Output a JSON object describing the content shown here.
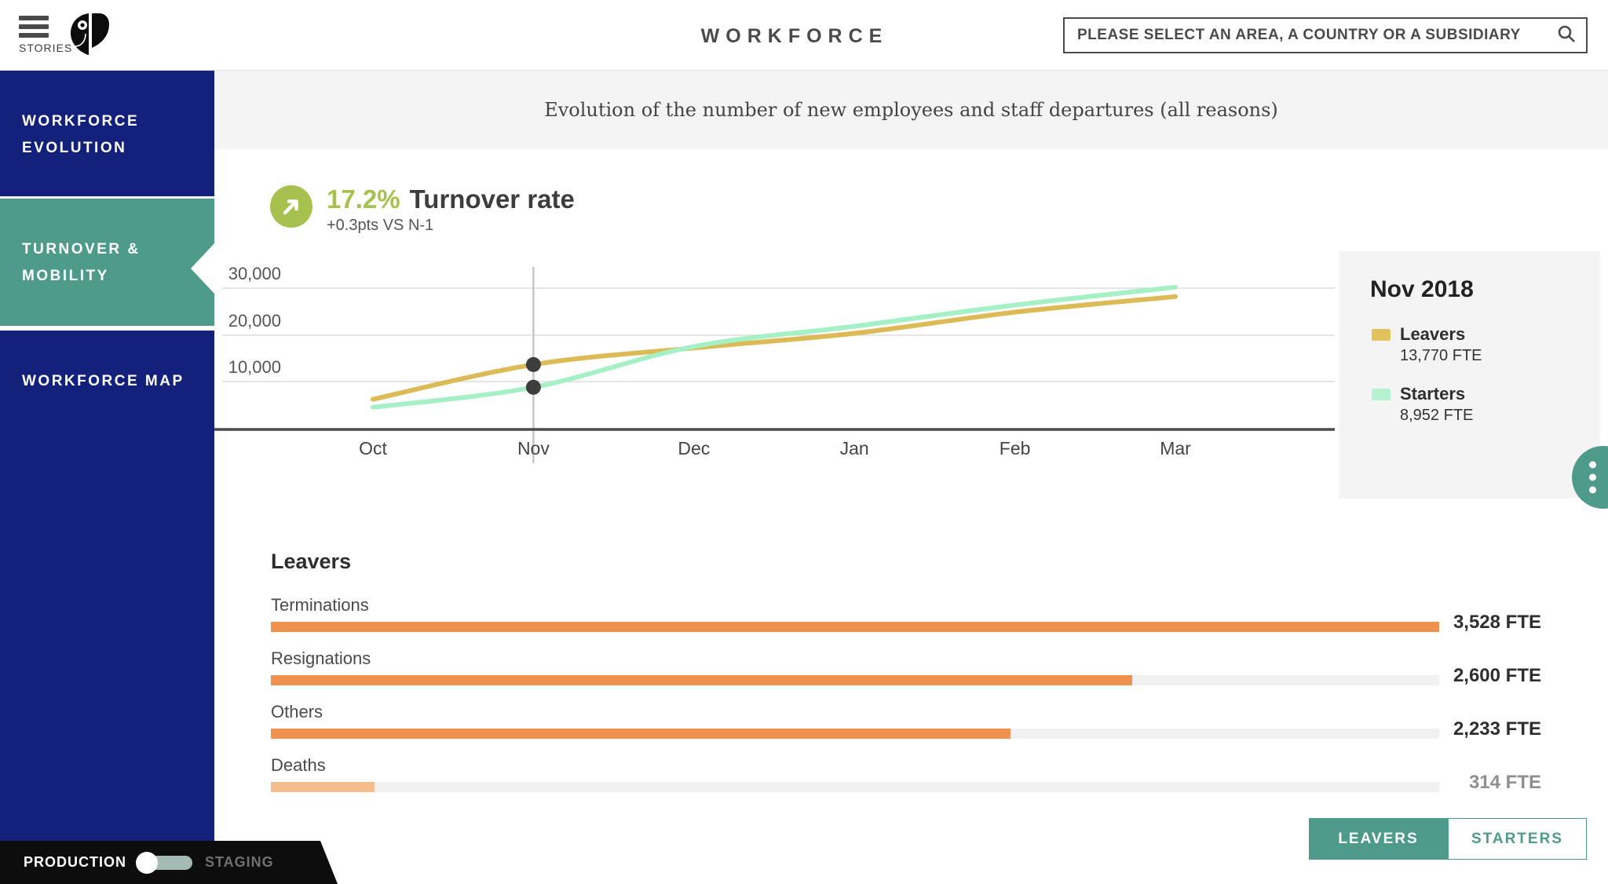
{
  "header": {
    "menu_label": "STORIES",
    "title": "WORKFORCE",
    "search_placeholder": "PLEASE SELECT AN AREA, A COUNTRY OR A SUBSIDIARY"
  },
  "sidebar": {
    "items": [
      {
        "line1": "WORKFORCE",
        "line2": "EVOLUTION",
        "active": false
      },
      {
        "line1": "TURNOVER &",
        "line2": "MOBILITY",
        "active": true
      },
      {
        "line1": "WORKFORCE MAP",
        "line2": "",
        "active": false
      }
    ]
  },
  "subtitle": "Evolution of the number of new employees and staff departures (all reasons)",
  "kpi": {
    "value": "17.2%",
    "label": "Turnover rate",
    "delta": "+0.3pts VS N-1"
  },
  "chart_data": [
    {
      "type": "line",
      "title": "Evolution of the number of new employees and staff departures (all reasons)",
      "x": [
        "Oct",
        "Nov",
        "Dec",
        "Jan",
        "Feb",
        "Mar"
      ],
      "series": [
        {
          "name": "Leavers",
          "color": "#dcba55",
          "values": [
            6400,
            13770,
            17300,
            20400,
            24900,
            28200
          ]
        },
        {
          "name": "Starters",
          "color": "#a5f0c5",
          "values": [
            4700,
            8952,
            17600,
            21900,
            26400,
            30200
          ]
        }
      ],
      "ylim": [
        0,
        32000
      ],
      "yticks": [
        10000,
        20000,
        30000
      ],
      "ytick_labels": [
        "10,000",
        "20,000",
        "30,000"
      ],
      "grid": true,
      "selected_x": "Nov",
      "selected_index": 1,
      "selected_values": [
        13770,
        8952
      ]
    },
    {
      "type": "bar",
      "title": "Leavers",
      "categories": [
        "Terminations",
        "Resignations",
        "Others",
        "Deaths"
      ],
      "values": [
        3528,
        2600,
        2233,
        314
      ],
      "value_labels": [
        "3,528 FTE",
        "2,600 FTE",
        "2,233 FTE",
        "314 FTE"
      ],
      "bar_colors": [
        "#f0924f",
        "#f0924f",
        "#f0924f",
        "#f5bd8c"
      ],
      "value_colors": [
        "#2f2f2f",
        "#2f2f2f",
        "#2f2f2f",
        "#8f8f8f"
      ],
      "xmax": 3528
    }
  ],
  "tooltip": {
    "title": "Nov 2018",
    "entries": [
      {
        "swatch": "#e2c25d",
        "name": "Leavers",
        "value": "13,770 FTE"
      },
      {
        "swatch": "#b5f2d2",
        "name": "Starters",
        "value": "8,952 FTE"
      }
    ]
  },
  "switch_buttons": {
    "leavers": "LEAVERS",
    "starters": "STARTERS"
  },
  "env_bar": {
    "production": "PRODUCTION",
    "staging": "STAGING"
  },
  "colors": {
    "navy": "#13217a",
    "teal": "#4f9b8b",
    "olive": "#a6c14e",
    "leavers_line": "#dcba55",
    "starters_line": "#a5f0c5",
    "orange": "#f0924f",
    "pale_orange": "#f5bd8c",
    "panel_gray": "#f4f4f4"
  }
}
